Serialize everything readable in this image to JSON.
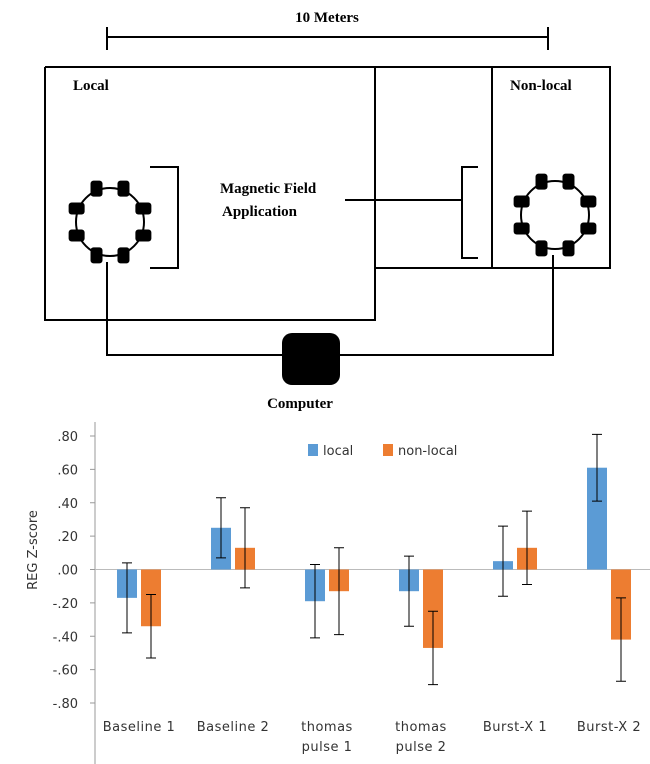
{
  "diagram": {
    "distance_label": "10 Meters",
    "local_label": "Local",
    "nonlocal_label": "Non-local",
    "field_label_lines": [
      "Magnetic Field",
      "Application"
    ],
    "computer_label": "Computer"
  },
  "chart_data": {
    "type": "bar",
    "y_label": "REG Z-score",
    "categories": [
      "Baseline 1",
      "Baseline 2",
      "thomas pulse 1",
      "thomas pulse 2",
      "Burst-X 1",
      "Burst-X 2"
    ],
    "series": [
      {
        "name": "local",
        "color": "#5b9bd5",
        "values": [
          -0.17,
          0.25,
          -0.19,
          -0.13,
          0.05,
          0.61
        ],
        "errors": [
          0.21,
          0.18,
          0.22,
          0.21,
          0.21,
          0.2
        ]
      },
      {
        "name": "non-local",
        "color": "#ed7d31",
        "values": [
          -0.34,
          0.13,
          -0.13,
          -0.47,
          0.13,
          -0.42
        ],
        "errors": [
          0.19,
          0.24,
          0.26,
          0.22,
          0.22,
          0.25
        ]
      }
    ],
    "ylim": [
      -0.8,
      0.8
    ],
    "yticks": [
      {
        "value": 0.8,
        "label": ".80"
      },
      {
        "value": 0.6,
        "label": ".60"
      },
      {
        "value": 0.4,
        "label": ".40"
      },
      {
        "value": 0.2,
        "label": ".20"
      },
      {
        "value": 0,
        "label": ".00"
      },
      {
        "value": -0.2,
        "label": "-.20"
      },
      {
        "value": -0.4,
        "label": "-.40"
      },
      {
        "value": -0.6,
        "label": "-.60"
      },
      {
        "value": -0.8,
        "label": "-.80"
      }
    ],
    "legend": "top"
  }
}
